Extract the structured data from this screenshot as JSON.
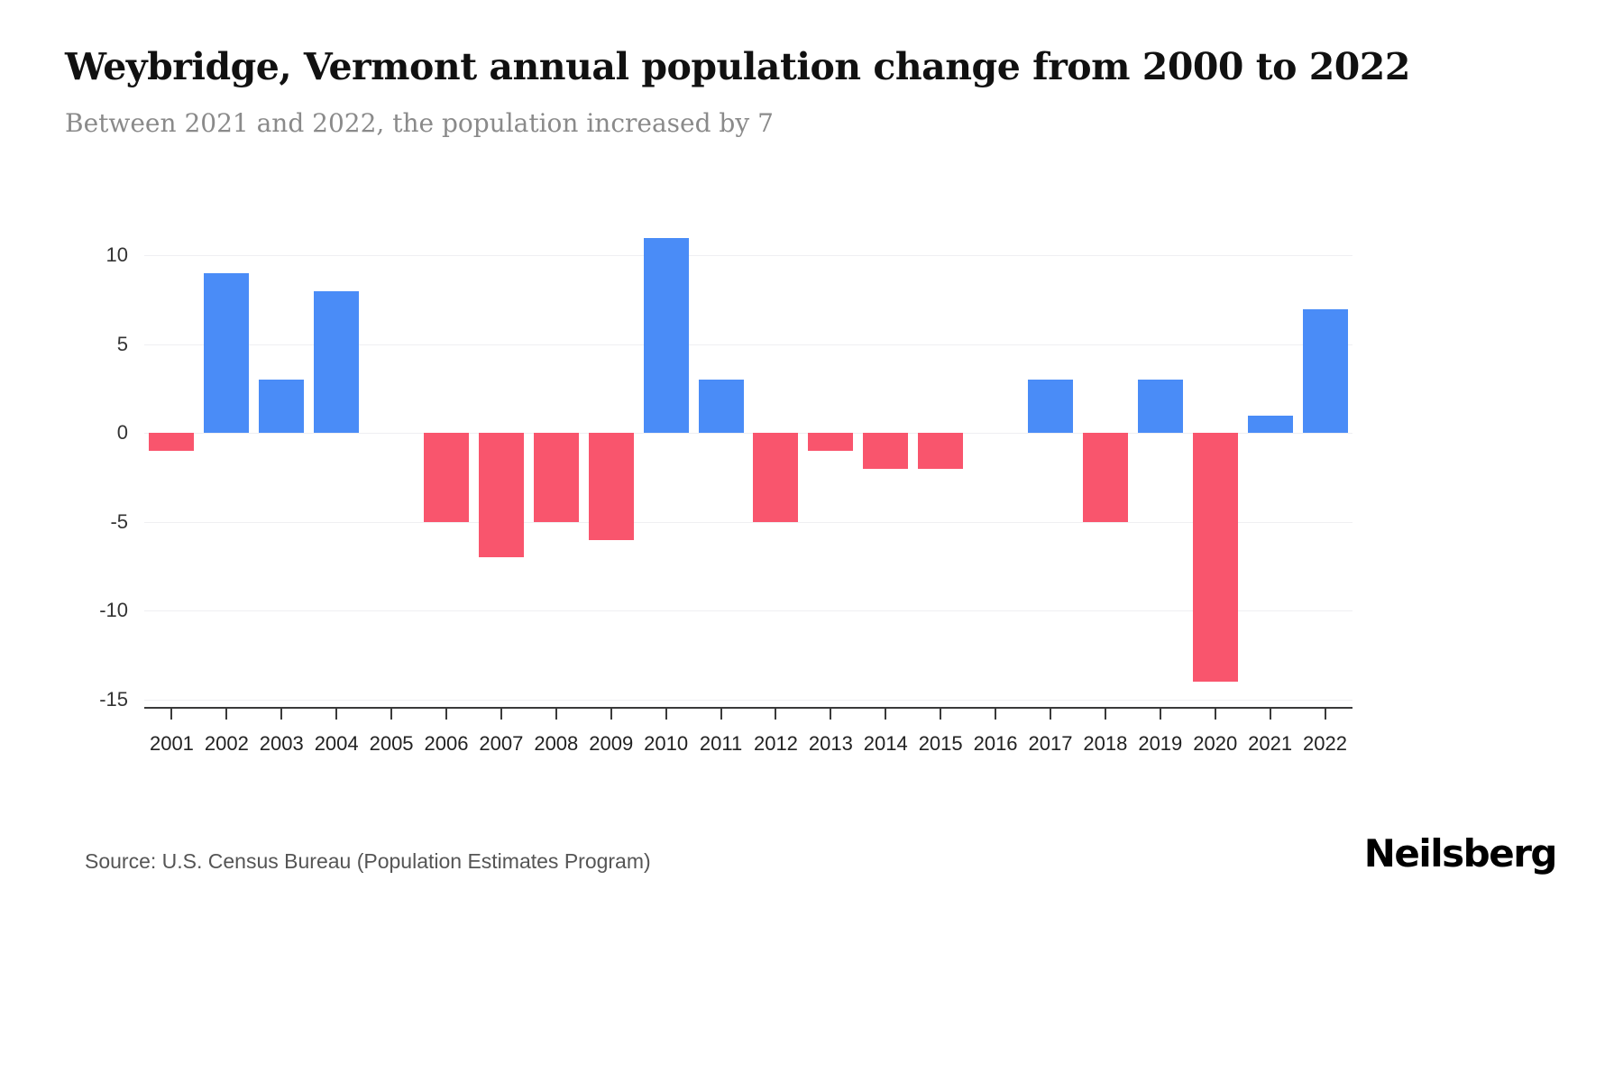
{
  "header": {
    "title": "Weybridge, Vermont annual population change from 2000 to 2022",
    "subtitle": "Between 2021 and 2022, the population increased by 7"
  },
  "footer": {
    "source": "Source: U.S. Census Bureau (Population Estimates Program)",
    "brand": "Neilsberg"
  },
  "chart_data": {
    "type": "bar",
    "title": "Weybridge, Vermont annual population change from 2000 to 2022",
    "subtitle": "Between 2021 and 2022, the population increased by 7",
    "categories": [
      "2001",
      "2002",
      "2003",
      "2004",
      "2005",
      "2006",
      "2007",
      "2008",
      "2009",
      "2010",
      "2011",
      "2012",
      "2013",
      "2014",
      "2015",
      "2016",
      "2017",
      "2018",
      "2019",
      "2020",
      "2021",
      "2022"
    ],
    "values": [
      -1,
      9,
      3,
      8,
      0,
      -5,
      -7,
      -5,
      -6,
      11,
      3,
      -5,
      -1,
      -2,
      -2,
      0,
      3,
      -5,
      3,
      -14,
      1,
      7
    ],
    "xlabel": "",
    "ylabel": "",
    "ylim": [
      -15,
      10
    ],
    "yticks": [
      10,
      5,
      0,
      -5,
      -10,
      -15
    ],
    "grid": true,
    "legend": false,
    "colors": {
      "positive": "#4A8CF7",
      "negative": "#F9556D"
    }
  }
}
